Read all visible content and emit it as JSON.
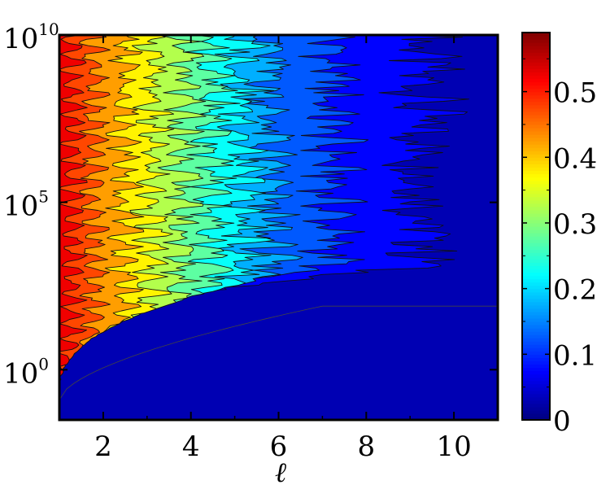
{
  "chart_data": {
    "type": "heatmap",
    "plot_style": "filled-contour",
    "title": "",
    "xlabel": "ℓ",
    "ylabel": "",
    "x_scale": "linear",
    "y_scale": "log",
    "xlim": [
      1,
      11
    ],
    "ylim_exponent": [
      -1.5,
      10
    ],
    "x_ticks": [
      {
        "value": 2,
        "label": "2"
      },
      {
        "value": 4,
        "label": "4"
      },
      {
        "value": 6,
        "label": "6"
      },
      {
        "value": 8,
        "label": "8"
      },
      {
        "value": 10,
        "label": "10"
      }
    ],
    "y_ticks": [
      {
        "exponent": 0,
        "base": "10",
        "power": "0"
      },
      {
        "exponent": 5,
        "base": "10",
        "power": "5"
      },
      {
        "exponent": 10,
        "base": "10",
        "power": "10"
      }
    ],
    "colorbar": {
      "range": [
        0,
        0.59
      ],
      "ticks": [
        {
          "value": 0,
          "label": "0"
        },
        {
          "value": 0.1,
          "label": "0.1"
        },
        {
          "value": 0.2,
          "label": "0.2"
        },
        {
          "value": 0.3,
          "label": "0.3"
        },
        {
          "value": 0.4,
          "label": "0.4"
        },
        {
          "value": 0.5,
          "label": "0.5"
        }
      ],
      "colormap": "jet"
    },
    "contour_boundaries": [
      {
        "level": 0.05,
        "x_at_top": 9.3
      },
      {
        "level": 0.1,
        "x_at_top": 7.2
      },
      {
        "level": 0.15,
        "x_at_top": 5.8
      },
      {
        "level": 0.2,
        "x_at_top": 5.2
      },
      {
        "level": 0.25,
        "x_at_top": 4.5
      },
      {
        "level": 0.3,
        "x_at_top": 3.8
      },
      {
        "level": 0.35,
        "x_at_top": 3.1
      },
      {
        "level": 0.4,
        "x_at_top": 2.5
      },
      {
        "level": 0.45,
        "x_at_top": 1.8
      },
      {
        "level": 0.5,
        "x_at_top": 1.3
      }
    ],
    "lower_boundary": {
      "exponent_at_x_start": -0.9,
      "exponent_at_x_end": 1.9,
      "x_end": 7.0
    },
    "grid": false
  }
}
